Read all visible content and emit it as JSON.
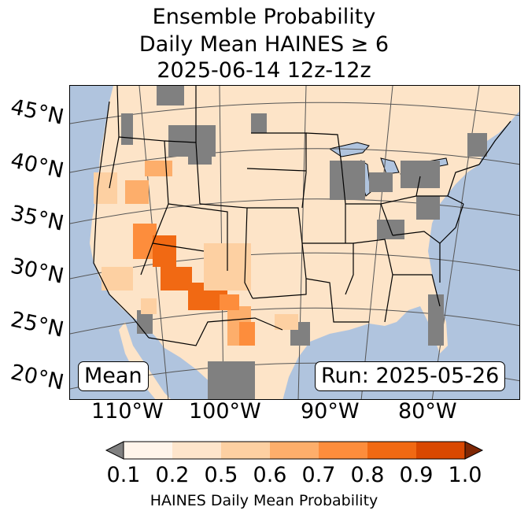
{
  "title": {
    "line1": "Ensemble Probability",
    "line2": "Daily Mean HAINES ≥ 6",
    "line3": "2025-06-14 12z-12z"
  },
  "map": {
    "stat_label": "Mean",
    "run_label": "Run: 2025-05-26",
    "lat_labels": [
      "45°N",
      "40°N",
      "35°N",
      "30°N",
      "25°N",
      "20°N"
    ],
    "lon_labels": [
      "110°W",
      "100°W",
      "90°W",
      "80°W"
    ],
    "colors": {
      "ocean": "#b0c4de",
      "land_masked": "#808080",
      "state_lines": "#000000",
      "graticule": "#555555"
    }
  },
  "colorbar": {
    "ticks": [
      "0.1",
      "0.2",
      "0.5",
      "0.6",
      "0.7",
      "0.8",
      "0.9",
      "1.0"
    ],
    "label": "HAINES Daily Mean Probability",
    "under_color": "#808080",
    "over_color": "#7f2704",
    "bins": [
      {
        "from": 0.1,
        "to": 0.2,
        "color": "#fff5eb"
      },
      {
        "from": 0.2,
        "to": 0.5,
        "color": "#fee5cb"
      },
      {
        "from": 0.5,
        "to": 0.6,
        "color": "#fdd0a2"
      },
      {
        "from": 0.6,
        "to": 0.7,
        "color": "#fdae6b"
      },
      {
        "from": 0.7,
        "to": 0.8,
        "color": "#fd8d3c"
      },
      {
        "from": 0.8,
        "to": 0.9,
        "color": "#f16913"
      },
      {
        "from": 0.9,
        "to": 1.0,
        "color": "#d94801"
      }
    ]
  }
}
